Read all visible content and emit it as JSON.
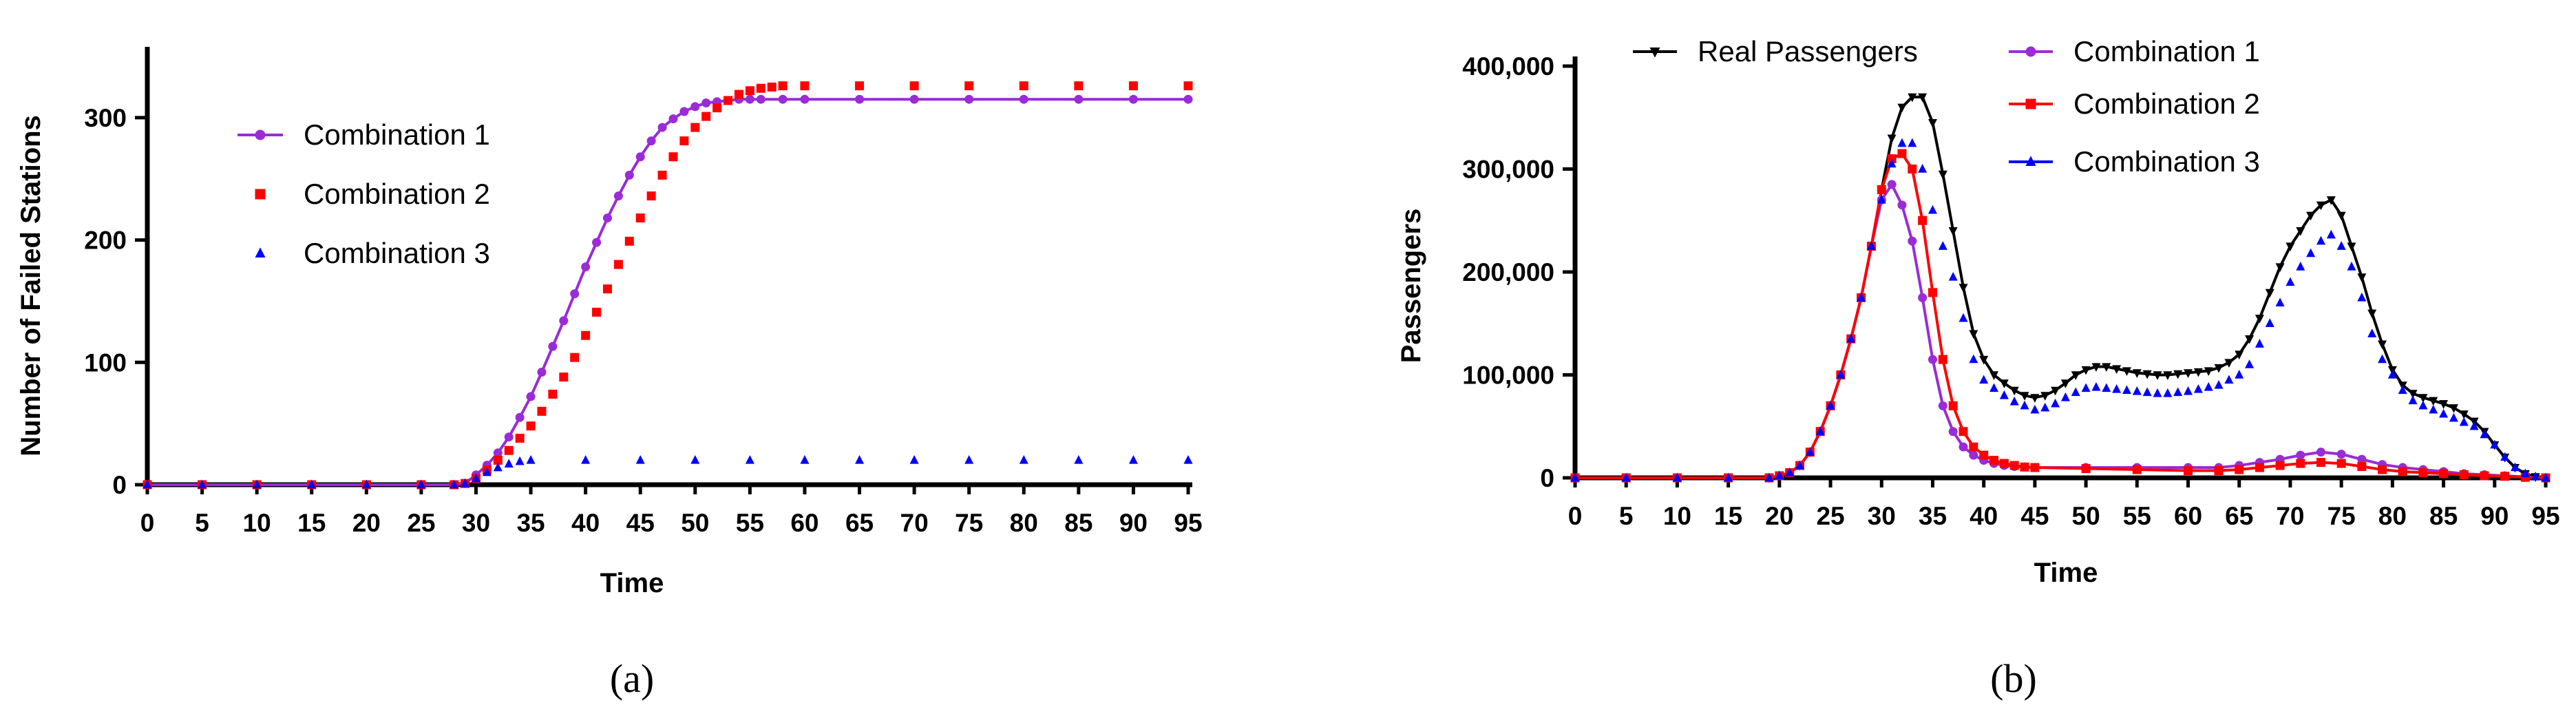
{
  "chart_data": [
    {
      "panel": "(a)",
      "type": "scatter",
      "xlabel": "Time",
      "ylabel": "Number of Failed Stations",
      "xlim": [
        0,
        95
      ],
      "ylim": [
        0,
        350
      ],
      "xticks": [
        "0",
        "5",
        "10",
        "15",
        "20",
        "25",
        "30",
        "35",
        "40",
        "45",
        "50",
        "55",
        "60",
        "65",
        "70",
        "75",
        "80",
        "85",
        "90",
        "95"
      ],
      "yticks": [
        "0",
        "100",
        "200",
        "300"
      ],
      "legend_position": "upper-left",
      "colors": {
        "Combination 1": "#9a2bd6",
        "Combination 2": "#ff0000",
        "Combination 3": "#0000ff"
      },
      "series": [
        {
          "name": "Combination 1",
          "marker": "circle",
          "line": true,
          "x": [
            0,
            5,
            10,
            15,
            20,
            25,
            28,
            29,
            30,
            31,
            32,
            33,
            34,
            35,
            36,
            37,
            38,
            39,
            40,
            41,
            42,
            43,
            44,
            45,
            46,
            47,
            48,
            49,
            50,
            51,
            52,
            53,
            54,
            55,
            56,
            58,
            60,
            65,
            70,
            75,
            80,
            85,
            90,
            95
          ],
          "y": [
            0,
            0,
            0,
            0,
            0,
            0,
            0,
            1,
            8,
            16,
            26,
            39,
            55,
            72,
            92,
            113,
            134,
            156,
            178,
            198,
            218,
            236,
            253,
            268,
            281,
            292,
            299,
            305,
            309,
            312,
            313,
            314,
            315,
            315,
            315,
            315,
            315,
            315,
            315,
            315,
            315,
            315,
            315,
            315
          ]
        },
        {
          "name": "Combination 2",
          "marker": "square",
          "line": false,
          "x": [
            0,
            5,
            10,
            15,
            20,
            25,
            28,
            29,
            30,
            31,
            32,
            33,
            34,
            35,
            36,
            37,
            38,
            39,
            40,
            41,
            42,
            43,
            44,
            45,
            46,
            47,
            48,
            49,
            50,
            51,
            52,
            53,
            54,
            55,
            56,
            57,
            58,
            60,
            65,
            70,
            75,
            80,
            85,
            90,
            95
          ],
          "y": [
            0,
            0,
            0,
            0,
            0,
            0,
            0,
            1,
            5,
            12,
            20,
            28,
            38,
            48,
            60,
            74,
            88,
            104,
            122,
            141,
            160,
            180,
            199,
            218,
            236,
            253,
            268,
            281,
            292,
            301,
            308,
            314,
            319,
            322,
            324,
            325,
            326,
            326,
            326,
            326,
            326,
            326,
            326,
            326,
            326
          ]
        },
        {
          "name": "Combination 3",
          "marker": "triangle",
          "line": false,
          "x": [
            0,
            5,
            10,
            15,
            20,
            25,
            28,
            29,
            30,
            31,
            32,
            33,
            34,
            35,
            40,
            45,
            50,
            55,
            60,
            65,
            70,
            75,
            80,
            85,
            90,
            95
          ],
          "y": [
            0,
            0,
            0,
            0,
            0,
            0,
            0,
            1,
            5,
            10,
            14,
            17,
            19,
            20,
            20,
            20,
            20,
            20,
            20,
            20,
            20,
            20,
            20,
            20,
            20,
            20
          ]
        }
      ]
    },
    {
      "panel": "(b)",
      "type": "line",
      "xlabel": "Time",
      "ylabel": "Passengers",
      "xlim": [
        0,
        95
      ],
      "ylim": [
        0,
        400000
      ],
      "xticks": [
        "0",
        "5",
        "10",
        "15",
        "20",
        "25",
        "30",
        "35",
        "40",
        "45",
        "50",
        "55",
        "60",
        "65",
        "70",
        "75",
        "80",
        "85",
        "90",
        "95"
      ],
      "yticks": [
        "0",
        "100,000",
        "200,000",
        "300,000",
        "400,000"
      ],
      "legend_position": "top",
      "colors": {
        "Real Passengers": "#000000",
        "Combination 1": "#9a2bd6",
        "Combination 2": "#ff0000",
        "Combination 3": "#0000ff"
      },
      "series": [
        {
          "name": "Real Passengers",
          "marker": "triangle-down",
          "line": true,
          "x": [
            0,
            5,
            10,
            15,
            19,
            20,
            21,
            22,
            23,
            24,
            25,
            26,
            27,
            28,
            29,
            30,
            31,
            32,
            33,
            34,
            35,
            36,
            37,
            38,
            39,
            40,
            41,
            42,
            43,
            44,
            45,
            46,
            47,
            48,
            49,
            50,
            51,
            52,
            53,
            54,
            55,
            56,
            57,
            58,
            59,
            60,
            61,
            62,
            63,
            64,
            65,
            66,
            67,
            68,
            69,
            70,
            71,
            72,
            73,
            74,
            75,
            76,
            77,
            78,
            79,
            80,
            81,
            82,
            83,
            84,
            85,
            86,
            87,
            88,
            89,
            90,
            91,
            92,
            93,
            94,
            95
          ],
          "y": [
            0,
            0,
            0,
            0,
            0,
            2000,
            5000,
            12000,
            25000,
            45000,
            70000,
            100000,
            135000,
            175000,
            225000,
            280000,
            330000,
            360000,
            370000,
            370000,
            345000,
            295000,
            240000,
            185000,
            140000,
            115000,
            100000,
            92000,
            85000,
            80000,
            78000,
            80000,
            85000,
            92000,
            100000,
            105000,
            108000,
            108000,
            106000,
            104000,
            102000,
            101000,
            100000,
            100000,
            101000,
            102000,
            103000,
            104000,
            107000,
            112000,
            120000,
            135000,
            155000,
            180000,
            205000,
            225000,
            240000,
            255000,
            265000,
            270000,
            255000,
            225000,
            195000,
            160000,
            130000,
            105000,
            90000,
            82000,
            78000,
            75000,
            72000,
            68000,
            62000,
            55000,
            45000,
            32000,
            20000,
            10000,
            4000,
            1000,
            0
          ]
        },
        {
          "name": "Combination 1",
          "marker": "circle",
          "line": true,
          "x": [
            0,
            5,
            10,
            15,
            19,
            20,
            21,
            22,
            23,
            24,
            25,
            26,
            27,
            28,
            29,
            30,
            31,
            32,
            33,
            34,
            35,
            36,
            37,
            38,
            39,
            40,
            41,
            42,
            43,
            44,
            45,
            50,
            55,
            60,
            63,
            65,
            67,
            69,
            71,
            73,
            75,
            77,
            79,
            81,
            83,
            85,
            87,
            89,
            91,
            93,
            95
          ],
          "y": [
            0,
            0,
            0,
            0,
            0,
            2000,
            5000,
            12000,
            25000,
            45000,
            70000,
            100000,
            135000,
            175000,
            225000,
            270000,
            285000,
            265000,
            230000,
            175000,
            115000,
            70000,
            45000,
            30000,
            22000,
            17000,
            14000,
            12000,
            11000,
            10500,
            10000,
            10000,
            10000,
            10000,
            10000,
            12000,
            15000,
            18000,
            22000,
            25000,
            23000,
            18000,
            13000,
            10000,
            8000,
            6000,
            4000,
            3000,
            2000,
            1000,
            0
          ]
        },
        {
          "name": "Combination 2",
          "marker": "square",
          "line": true,
          "x": [
            0,
            5,
            10,
            15,
            19,
            20,
            21,
            22,
            23,
            24,
            25,
            26,
            27,
            28,
            29,
            30,
            31,
            32,
            33,
            34,
            35,
            36,
            37,
            38,
            39,
            40,
            41,
            42,
            43,
            44,
            45,
            50,
            55,
            60,
            63,
            65,
            67,
            69,
            71,
            73,
            75,
            77,
            79,
            81,
            83,
            85,
            87,
            89,
            91,
            93,
            95
          ],
          "y": [
            0,
            0,
            0,
            0,
            0,
            2000,
            5000,
            12000,
            25000,
            45000,
            70000,
            100000,
            135000,
            175000,
            225000,
            280000,
            310000,
            315000,
            300000,
            250000,
            180000,
            115000,
            70000,
            45000,
            30000,
            22000,
            17000,
            14000,
            12000,
            10500,
            10000,
            9000,
            8000,
            7000,
            7000,
            8000,
            10000,
            12000,
            14000,
            15000,
            14000,
            11000,
            8000,
            6000,
            5000,
            4000,
            3000,
            2000,
            1500,
            500,
            0
          ]
        },
        {
          "name": "Combination 3",
          "marker": "triangle",
          "line": false,
          "x": [
            0,
            5,
            10,
            15,
            19,
            20,
            21,
            22,
            23,
            24,
            25,
            26,
            27,
            28,
            29,
            30,
            31,
            32,
            33,
            34,
            35,
            36,
            37,
            38,
            39,
            40,
            41,
            42,
            43,
            44,
            45,
            46,
            47,
            48,
            49,
            50,
            51,
            52,
            53,
            54,
            55,
            56,
            57,
            58,
            59,
            60,
            61,
            62,
            63,
            64,
            65,
            66,
            67,
            68,
            69,
            70,
            71,
            72,
            73,
            74,
            75,
            76,
            77,
            78,
            79,
            80,
            81,
            82,
            83,
            84,
            85,
            86,
            87,
            88,
            89,
            90,
            91,
            92,
            93,
            94,
            95
          ],
          "y": [
            0,
            0,
            0,
            0,
            0,
            2000,
            5000,
            12000,
            25000,
            45000,
            70000,
            100000,
            135000,
            175000,
            225000,
            270000,
            305000,
            325000,
            325000,
            300000,
            260000,
            225000,
            195000,
            155000,
            115000,
            95000,
            87000,
            80000,
            74000,
            70000,
            66000,
            68000,
            72000,
            78000,
            83000,
            87000,
            88000,
            87000,
            86000,
            85000,
            84000,
            83000,
            82000,
            82000,
            83000,
            84000,
            86000,
            88000,
            90000,
            95000,
            100000,
            110000,
            130000,
            150000,
            170000,
            190000,
            205000,
            218000,
            230000,
            236000,
            225000,
            205000,
            175000,
            140000,
            115000,
            100000,
            85000,
            75000,
            70000,
            66000,
            62000,
            58000,
            54000,
            50000,
            42000,
            32000,
            20000,
            10000,
            4000,
            1000,
            0
          ]
        }
      ]
    }
  ]
}
